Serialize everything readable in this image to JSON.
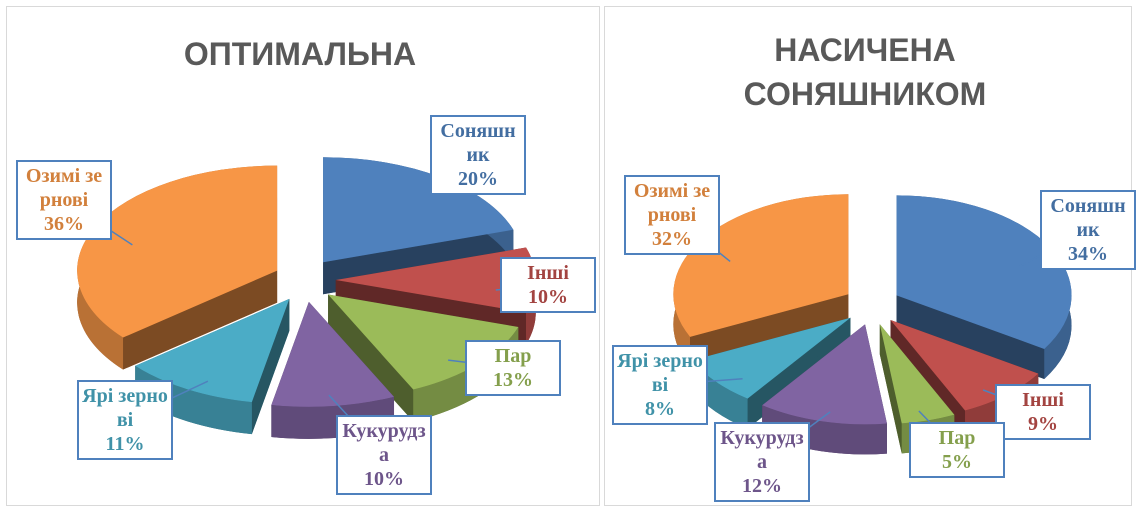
{
  "chart_data": [
    {
      "type": "pie",
      "title": "ОПТИМАЛЬНА",
      "categories": [
        "Соняшник",
        "Інші",
        "Пар",
        "Кукурудза",
        "Ярі зернові",
        "Озимі зернові"
      ],
      "values": [
        20,
        10,
        13,
        10,
        11,
        36
      ],
      "value_labels": [
        "20%",
        "10%",
        "13%",
        "10%",
        "11%",
        "36%"
      ],
      "colors": [
        "#4f81bd",
        "#c0504d",
        "#9bbb59",
        "#8064a2",
        "#4bacc6",
        "#f79646"
      ]
    },
    {
      "type": "pie",
      "title": "НАСИЧЕНА СОНЯШНИКОМ",
      "categories": [
        "Соняшник",
        "Інші",
        "Пар",
        "Кукурудза",
        "Ярі зернові",
        "Озимі зернові"
      ],
      "values": [
        34,
        9,
        5,
        12,
        8,
        32
      ],
      "value_labels": [
        "34%",
        "9%",
        "5%",
        "12%",
        "8%",
        "32%"
      ],
      "colors": [
        "#4f81bd",
        "#c0504d",
        "#9bbb59",
        "#8064a2",
        "#4bacc6",
        "#f79646"
      ]
    }
  ]
}
